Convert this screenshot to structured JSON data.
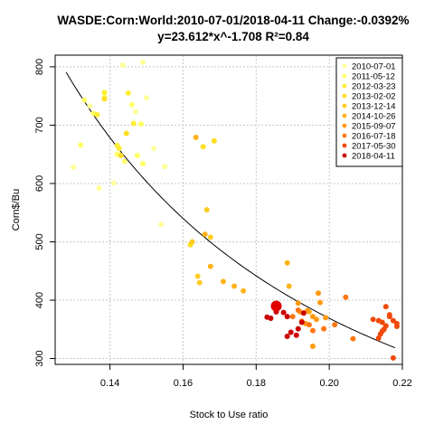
{
  "chart_data": {
    "type": "scatter",
    "title": "WASDE:Corn:World:2010-07-01/2018-04-11 Change:-0.0392%",
    "subtitle": "y=23.612*x^-1.708 R²=0.84",
    "xlabel": "Stock to Use ratio",
    "ylabel": "Corn$/Bu",
    "xlim": [
      0.125,
      0.22
    ],
    "ylim": [
      290,
      820
    ],
    "xticks": [
      "0.14",
      "0.16",
      "0.18",
      "0.20",
      "0.22"
    ],
    "xtick_values": [
      0.14,
      0.16,
      0.18,
      0.2,
      0.22
    ],
    "yticks": [
      "300",
      "400",
      "500",
      "600",
      "700",
      "800"
    ],
    "ytick_values": [
      300,
      400,
      500,
      600,
      700,
      800
    ],
    "grid": true,
    "legend_position": "top-right",
    "fit": {
      "a": 23.612,
      "b": -1.708,
      "x_from": 0.128,
      "x_to": 0.218,
      "color": "#000000"
    },
    "last_point": {
      "x": 0.1855,
      "y": 390,
      "color": "#e00000"
    },
    "series": [
      {
        "name": "2010-07-01",
        "color": "#ffff99",
        "points": [
          [
            0.13,
            628
          ],
          [
            0.1345,
            733
          ],
          [
            0.137,
            592
          ],
          [
            0.141,
            601
          ],
          [
            0.1435,
            803
          ],
          [
            0.149,
            808
          ],
          [
            0.15,
            747
          ],
          [
            0.152,
            660
          ],
          [
            0.154,
            530
          ],
          [
            0.155,
            629
          ],
          [
            0.147,
            723
          ]
        ]
      },
      {
        "name": "2011-05-12",
        "color": "#ffff66",
        "points": [
          [
            0.132,
            666
          ],
          [
            0.133,
            743
          ],
          [
            0.1355,
            720
          ],
          [
            0.1385,
            748
          ],
          [
            0.142,
            650
          ],
          [
            0.144,
            638
          ],
          [
            0.146,
            735
          ],
          [
            0.1475,
            648
          ],
          [
            0.149,
            634
          ],
          [
            0.1485,
            702
          ]
        ]
      },
      {
        "name": "2012-03-23",
        "color": "#ffee33",
        "points": [
          [
            0.1365,
            718
          ],
          [
            0.1385,
            756
          ],
          [
            0.142,
            665
          ],
          [
            0.1425,
            660
          ],
          [
            0.145,
            755
          ],
          [
            0.1465,
            703
          ]
        ]
      },
      {
        "name": "2013-02-02",
        "color": "#ffdd22",
        "points": [
          [
            0.1385,
            745
          ],
          [
            0.143,
            648
          ],
          [
            0.1445,
            686
          ],
          [
            0.162,
            495
          ],
          [
            0.1655,
            663
          ],
          [
            0.1685,
            673
          ]
        ]
      },
      {
        "name": "2013-12-14",
        "color": "#ffcc22",
        "points": [
          [
            0.1625,
            500
          ],
          [
            0.164,
            441
          ],
          [
            0.1665,
            555
          ],
          [
            0.1675,
            508
          ],
          [
            0.1645,
            430
          ]
        ]
      },
      {
        "name": "2014-10-26",
        "color": "#ffb319",
        "points": [
          [
            0.1635,
            679
          ],
          [
            0.166,
            513
          ],
          [
            0.1675,
            458
          ],
          [
            0.171,
            432
          ],
          [
            0.174,
            424
          ],
          [
            0.1765,
            416
          ],
          [
            0.1885,
            464
          ],
          [
            0.189,
            424
          ],
          [
            0.1945,
            380
          ]
        ]
      },
      {
        "name": "2015-09-07",
        "color": "#ff9a11",
        "points": [
          [
            0.1915,
            395
          ],
          [
            0.1955,
            321
          ],
          [
            0.197,
            412
          ],
          [
            0.1975,
            396
          ],
          [
            0.192,
            380
          ],
          [
            0.194,
            382
          ],
          [
            0.1935,
            360
          ],
          [
            0.1955,
            372
          ],
          [
            0.1965,
            367
          ],
          [
            0.199,
            370
          ]
        ]
      },
      {
        "name": "2016-07-18",
        "color": "#ff7711",
        "points": [
          [
            0.19,
            372
          ],
          [
            0.1915,
            383
          ],
          [
            0.1925,
            364
          ],
          [
            0.1945,
            358
          ],
          [
            0.1955,
            348
          ],
          [
            0.1985,
            351
          ],
          [
            0.2015,
            358
          ],
          [
            0.2045,
            405
          ],
          [
            0.2065,
            334
          ]
        ]
      },
      {
        "name": "2017-05-30",
        "color": "#f24a0a",
        "points": [
          [
            0.212,
            367
          ],
          [
            0.2135,
            365
          ],
          [
            0.2145,
            362
          ],
          [
            0.2155,
            389
          ],
          [
            0.2165,
            372
          ],
          [
            0.2175,
            365
          ],
          [
            0.2185,
            360
          ],
          [
            0.2185,
            355
          ],
          [
            0.215,
            350
          ],
          [
            0.2145,
            347
          ],
          [
            0.214,
            342
          ],
          [
            0.2135,
            335
          ],
          [
            0.2175,
            301
          ],
          [
            0.2165,
            375
          ],
          [
            0.2155,
            356
          ]
        ]
      },
      {
        "name": "2018-04-11",
        "color": "#cc0000",
        "points": [
          [
            0.183,
            371
          ],
          [
            0.184,
            369
          ],
          [
            0.1855,
            380
          ],
          [
            0.1875,
            379
          ],
          [
            0.1885,
            372
          ],
          [
            0.1895,
            345
          ],
          [
            0.1885,
            338
          ],
          [
            0.191,
            340
          ],
          [
            0.1915,
            351
          ],
          [
            0.1925,
            362
          ],
          [
            0.193,
            378
          ]
        ]
      }
    ]
  }
}
